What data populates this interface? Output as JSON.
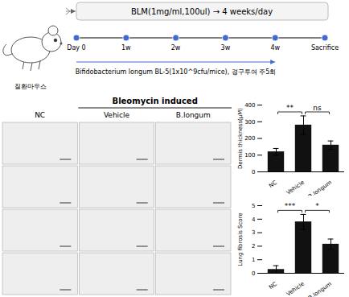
{
  "chart_data": [
    {
      "type": "timeline",
      "title": "BLM(1mg/ml,100ul) → 4 weeks/day",
      "categories": [
        "Day 0",
        "1w",
        "2w",
        "3w",
        "4w",
        "Sacrifice"
      ],
      "annotations": [
        "질환마우스",
        "Bifidobacterium longum BL-5(1x10^9cfu/mice), 경구투여 주5회"
      ]
    },
    {
      "type": "images",
      "title": "Bleomycin induced",
      "categories": [
        "NC",
        "Vehicle",
        "B.longum"
      ],
      "rows": 4
    },
    {
      "type": "bar",
      "categories": [
        "NC",
        "Vehicle",
        "B.longum"
      ],
      "values": [
        120,
        280,
        160
      ],
      "errors": [
        20,
        55,
        25
      ],
      "color": "#111111",
      "ylabel": "Dermis thickness(μM)",
      "ylim": [
        0,
        400
      ],
      "yticks": [
        0,
        100,
        200,
        300,
        400
      ],
      "annotations": [
        {
          "text": "**",
          "from": "NC",
          "to": "Vehicle"
        },
        {
          "text": "ns",
          "from": "Vehicle",
          "to": "B.longum"
        }
      ]
    },
    {
      "type": "bar",
      "categories": [
        "NC",
        "Vehicle",
        "B.longum"
      ],
      "values": [
        0.28,
        3.8,
        2.15
      ],
      "errors": [
        0.28,
        0.55,
        0.38
      ],
      "color": "#111111",
      "ylabel": "Lung fibrosis Score",
      "ylim": [
        0,
        5
      ],
      "yticks": [
        0,
        1,
        2,
        3,
        4,
        5
      ],
      "annotations": [
        {
          "text": "***",
          "from": "NC",
          "to": "Vehicle"
        },
        {
          "text": "*",
          "from": "Vehicle",
          "to": "B.longum"
        }
      ]
    }
  ]
}
